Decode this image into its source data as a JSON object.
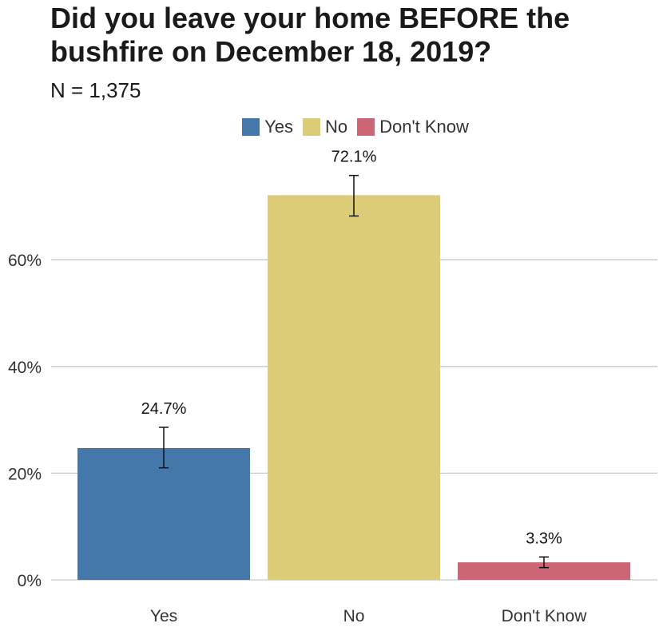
{
  "chart_data": {
    "type": "bar",
    "title_lines": [
      "Did you leave your home BEFORE the",
      "bushfire on December 18, 2019?"
    ],
    "subtitle": "N = 1,375",
    "categories": [
      "Yes",
      "No",
      "Don't Know"
    ],
    "values": [
      24.7,
      72.1,
      3.3
    ],
    "error_low": [
      21.0,
      68.2,
      2.3
    ],
    "error_high": [
      28.6,
      75.8,
      4.3
    ],
    "data_labels": [
      "24.7%",
      "72.1%",
      "3.3%"
    ],
    "colors": [
      "#4477aa",
      "#ddcc77",
      "#cc6677"
    ],
    "legend": [
      "Yes",
      "No",
      "Don't Know"
    ],
    "legend_position": "top",
    "y_ticks": [
      0,
      20,
      40,
      60
    ],
    "y_tick_labels": [
      "0%",
      "20%",
      "40%",
      "60%"
    ],
    "ylim": [
      0,
      75.8
    ],
    "grid": true,
    "xlabel": "",
    "ylabel": ""
  }
}
